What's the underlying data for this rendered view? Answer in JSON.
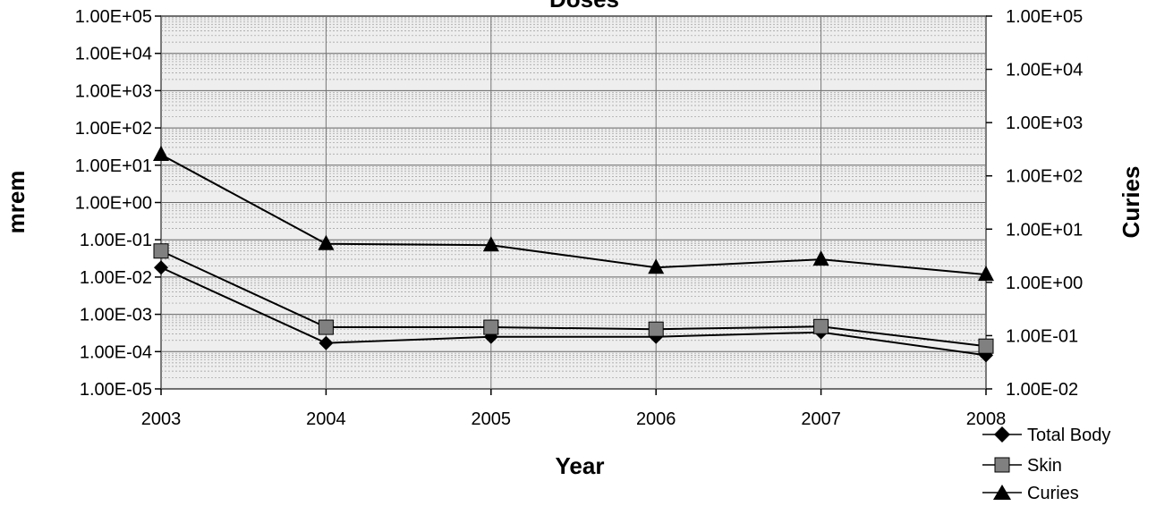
{
  "chart_data": {
    "type": "line",
    "title": "Doses",
    "xlabel": "Year",
    "ylabel": "mrem",
    "y2label": "Curies",
    "x": [
      "2003",
      "2004",
      "2005",
      "2006",
      "2007",
      "2008"
    ],
    "y_scale": "log",
    "y2_scale": "log",
    "ylim": [
      1e-05,
      100000
    ],
    "y2lim": [
      0.01,
      100000
    ],
    "y_ticks": [
      "1.00E+05",
      "1.00E+04",
      "1.00E+03",
      "1.00E+02",
      "1.00E+01",
      "1.00E+00",
      "1.00E-01",
      "1.00E-02",
      "1.00E-03",
      "1.00E-04",
      "1.00E-05"
    ],
    "y2_ticks": [
      "1.00E+05",
      "1.00E+04",
      "1.00E+03",
      "1.00E+02",
      "1.00E+01",
      "1.00E+00",
      "1.00E-01",
      "1.00E-02"
    ],
    "grid": true,
    "legend_position": "bottom-right",
    "series": [
      {
        "name": "Total Body",
        "axis": "left",
        "marker": "diamond",
        "color": "#000000",
        "values": [
          0.018,
          0.00017,
          0.00025,
          0.00025,
          0.00033,
          8e-05
        ]
      },
      {
        "name": "Skin",
        "axis": "left",
        "marker": "square",
        "color": "#808080",
        "values": [
          0.05,
          0.00045,
          0.00045,
          0.0004,
          0.00047,
          0.00014
        ]
      },
      {
        "name": "Curies",
        "axis": "right",
        "marker": "triangle",
        "color": "#000000",
        "values": [
          250,
          5.3,
          5.0,
          1.9,
          2.7,
          1.4
        ]
      }
    ]
  }
}
